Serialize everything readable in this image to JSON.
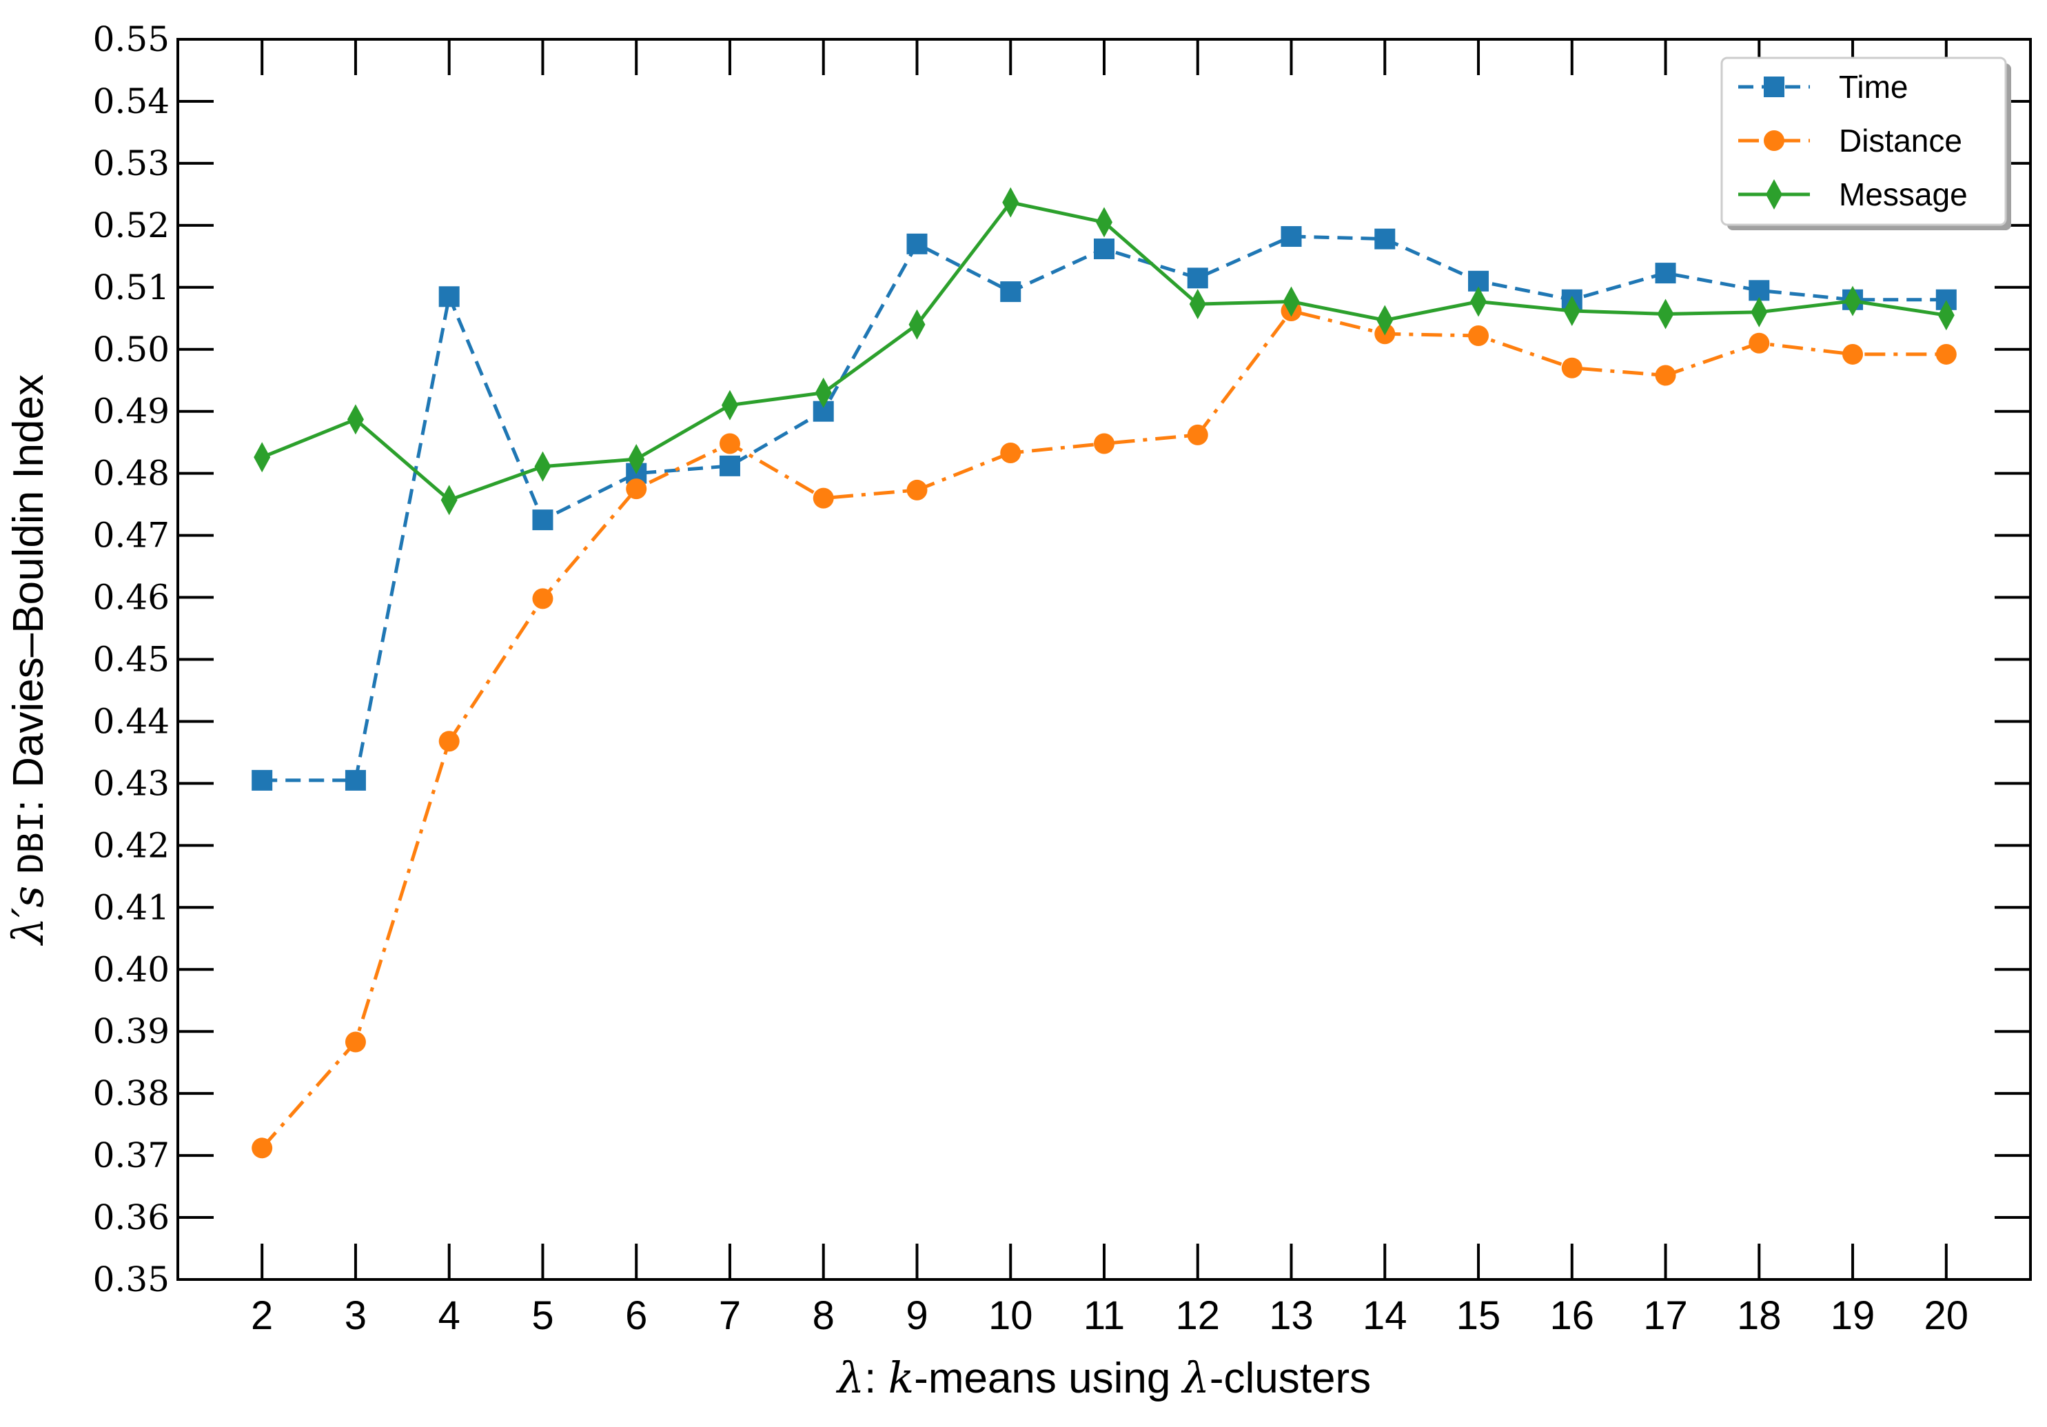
{
  "chart_data": {
    "type": "line",
    "title": "",
    "xlabel": {
      "symbol": "λ",
      "sep": ": ",
      "k": "k",
      "text1": "-means using ",
      "symbol2": "λ",
      "text2": "-clusters"
    },
    "ylabel": {
      "symbol": "λ′s",
      "code": "DBI",
      "text": ": Davies–Bouldin Index"
    },
    "x": [
      2,
      3,
      4,
      5,
      6,
      7,
      8,
      9,
      10,
      11,
      12,
      13,
      14,
      15,
      16,
      17,
      18,
      19,
      20
    ],
    "xlim": [
      1.1,
      20.9
    ],
    "ylim": [
      0.35,
      0.55
    ],
    "yticks": [
      "0.35",
      "0.36",
      "0.37",
      "0.38",
      "0.39",
      "0.40",
      "0.41",
      "0.42",
      "0.43",
      "0.44",
      "0.45",
      "0.46",
      "0.47",
      "0.48",
      "0.49",
      "0.50",
      "0.51",
      "0.52",
      "0.53",
      "0.54",
      "0.55"
    ],
    "xticks": [
      "2",
      "3",
      "4",
      "5",
      "6",
      "7",
      "8",
      "9",
      "10",
      "11",
      "12",
      "13",
      "14",
      "15",
      "16",
      "17",
      "18",
      "19",
      "20"
    ],
    "grid": false,
    "legend_position": "top-right",
    "series": [
      {
        "name": "Time",
        "color": "#1f77b4",
        "marker": "square",
        "linestyle": "dashed",
        "values": [
          0.4305,
          0.4305,
          0.5085,
          0.4725,
          0.48,
          0.4812,
          0.49,
          0.517,
          0.5093,
          0.5162,
          0.5115,
          0.5182,
          0.5178,
          0.511,
          0.508,
          0.5123,
          0.5095,
          0.508,
          0.508
        ]
      },
      {
        "name": "Distance",
        "color": "#ff7f0e",
        "marker": "circle",
        "linestyle": "dashdot",
        "values": [
          0.3712,
          0.3883,
          0.4368,
          0.4598,
          0.4775,
          0.4848,
          0.476,
          0.4773,
          0.4833,
          0.4848,
          0.4862,
          0.5062,
          0.5025,
          0.5022,
          0.497,
          0.4958,
          0.501,
          0.4992,
          0.4992
        ]
      },
      {
        "name": "Message",
        "color": "#2ca02c",
        "marker": "diamond",
        "linestyle": "solid",
        "values": [
          0.4826,
          0.4887,
          0.4757,
          0.4811,
          0.4823,
          0.491,
          0.493,
          0.504,
          0.5237,
          0.5205,
          0.5073,
          0.5077,
          0.5047,
          0.5077,
          0.5062,
          0.5057,
          0.506,
          0.5078,
          0.5055
        ]
      }
    ]
  }
}
